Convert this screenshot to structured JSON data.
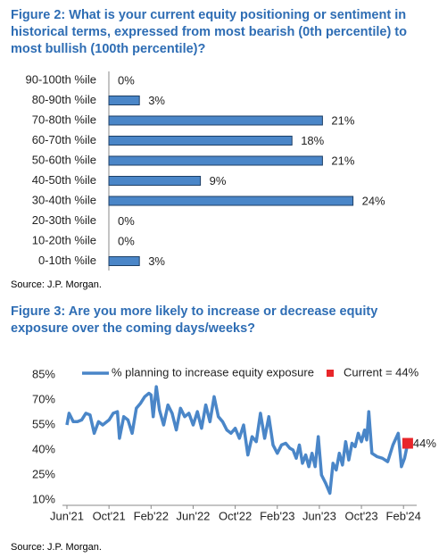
{
  "chart_data": [
    {
      "type": "hbar",
      "title": "Figure 2: What is your current equity positioning or sentiment in historical terms, expressed from most bearish (0th percentile) to most bullish (100th percentile)?",
      "categories": [
        "90-100th %ile",
        "80-90th %ile",
        "70-80th %ile",
        "60-70th %ile",
        "50-60th %ile",
        "40-50th %ile",
        "30-40th %ile",
        "20-30th %ile",
        "10-20th %ile",
        "0-10th %ile"
      ],
      "values": [
        0,
        3,
        21,
        18,
        21,
        9,
        24,
        0,
        0,
        3
      ],
      "value_labels": [
        "0%",
        "3%",
        "21%",
        "18%",
        "21%",
        "9%",
        "24%",
        "0%",
        "0%",
        "3%"
      ],
      "color": "#4a86c8",
      "source": "Source: J.P. Morgan."
    },
    {
      "type": "line",
      "title": "Figure 3: Are you more likely to increase or decrease equity exposure over the coming days/weeks?",
      "x": [
        0,
        0.2,
        0.6,
        1,
        1.4,
        1.8,
        2.2,
        2.6,
        3,
        3.4,
        3.8,
        4,
        4.4,
        4.8,
        5,
        5.4,
        5.8,
        6.2,
        6.6,
        7,
        7.4,
        7.8,
        8,
        8.2,
        8.5,
        8.8,
        9.2,
        9.6,
        10,
        10.4,
        10.8,
        11.2,
        11.6,
        12,
        12.4,
        12.8,
        13.2,
        13.6,
        14,
        14.4,
        14.8,
        15.2,
        15.6,
        16,
        16.4,
        16.8,
        17.2,
        17.6,
        18,
        18.4,
        18.8,
        19.2,
        19.6,
        20,
        20.4,
        20.8,
        21.2,
        21.5,
        21.8,
        22.1,
        22.4,
        22.7,
        23,
        23.3,
        23.6,
        23.9,
        24.2,
        24.6,
        25,
        25.3,
        25.6,
        25.9,
        26.2,
        26.5,
        26.8,
        27.1,
        27.4,
        27.7,
        28,
        28.3,
        28.5,
        28.7,
        29,
        29.5,
        30,
        30.5,
        31,
        31.5,
        31.8,
        32.1,
        32.4
      ],
      "series": [
        {
          "name": "% planning to increase equity exposure",
          "color": "#4a86c8",
          "values": [
            55,
            62,
            57,
            57,
            58,
            62,
            61,
            50,
            57,
            55,
            57,
            58,
            62,
            63,
            47,
            60,
            58,
            50,
            65,
            68,
            72,
            74,
            73,
            60,
            78,
            64,
            55,
            67,
            62,
            52,
            65,
            60,
            62,
            55,
            63,
            53,
            67,
            57,
            72,
            60,
            57,
            52,
            50,
            53,
            47,
            55,
            37,
            48,
            45,
            62,
            47,
            60,
            43,
            38,
            43,
            44,
            41,
            40,
            35,
            43,
            32,
            37,
            30,
            38,
            30,
            48,
            25,
            20,
            14,
            32,
            28,
            38,
            31,
            45,
            34,
            44,
            42,
            50,
            45,
            52,
            46,
            63,
            38,
            36,
            35,
            33,
            43,
            50,
            30,
            35,
            44
          ]
        }
      ],
      "xlim": [
        0,
        33
      ],
      "xticks": [
        {
          "value": 0,
          "label": "Jun'21"
        },
        {
          "value": 4,
          "label": "Oct'21"
        },
        {
          "value": 8,
          "label": "Feb'22"
        },
        {
          "value": 12,
          "label": "Jun'22"
        },
        {
          "value": 16,
          "label": "Oct'22"
        },
        {
          "value": 20,
          "label": "Feb'23"
        },
        {
          "value": 24,
          "label": "Jun'23"
        },
        {
          "value": 28,
          "label": "Oct'23"
        },
        {
          "value": 32,
          "label": "Feb'24"
        }
      ],
      "ylim": [
        10,
        85
      ],
      "yticks": [
        {
          "value": 10,
          "label": "10%"
        },
        {
          "value": 25,
          "label": "25%"
        },
        {
          "value": 40,
          "label": "40%"
        },
        {
          "value": 55,
          "label": "55%"
        },
        {
          "value": 70,
          "label": "70%"
        },
        {
          "value": 85,
          "label": "85%"
        }
      ],
      "current": {
        "x": 32.4,
        "value": 44,
        "label": "44%",
        "legend": "Current = 44%",
        "color": "#e8262a"
      },
      "source": "Source: J.P. Morgan."
    }
  ]
}
